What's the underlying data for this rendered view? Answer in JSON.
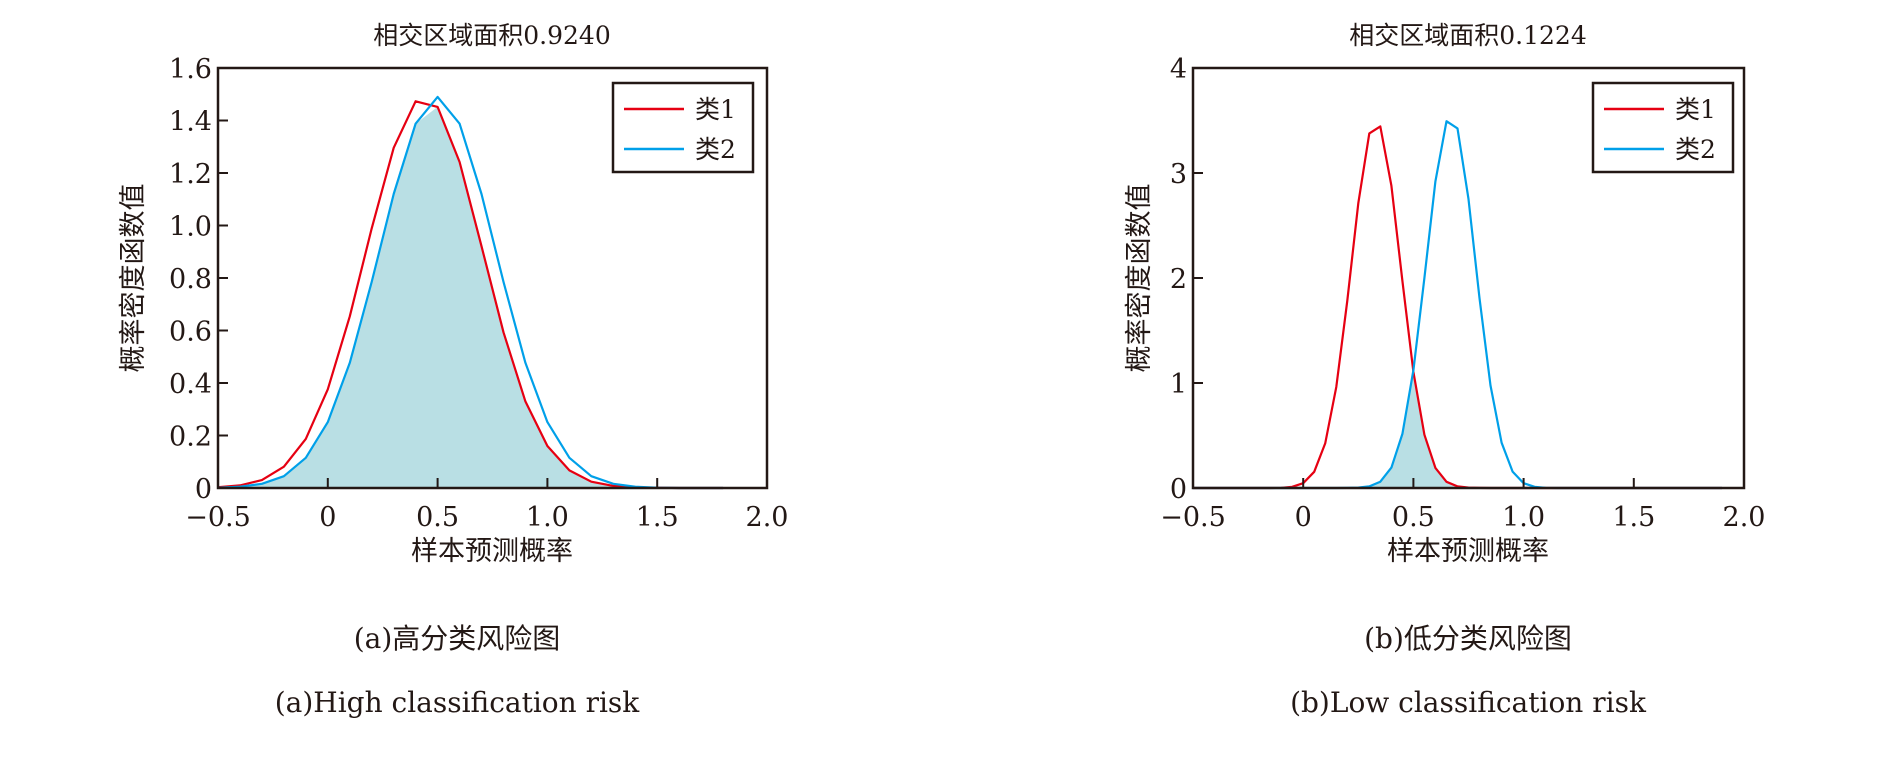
{
  "colors": {
    "class1": "#e60012",
    "class2": "#00a0e9",
    "overlap_fill": "#b9dfe4",
    "axis": "#231815"
  },
  "chart_data": [
    {
      "type": "area",
      "title": "相交区域面积0.9240",
      "xlabel": "样本预测概率",
      "ylabel": "概率密度函数值",
      "xlim": [
        -0.5,
        2.0
      ],
      "ylim": [
        0,
        1.6
      ],
      "xticks": [
        -0.5,
        0,
        0.5,
        1.0,
        1.5,
        2.0
      ],
      "xtick_labels": [
        "−0.5",
        "0",
        "0.5",
        "1.0",
        "1.5",
        "2.0"
      ],
      "yticks": [
        0,
        0.2,
        0.4,
        0.6,
        0.8,
        1.0,
        1.2,
        1.4,
        1.6
      ],
      "ytick_labels": [
        "0",
        "0.2",
        "0.4",
        "0.6",
        "0.8",
        "1.0",
        "1.2",
        "1.4",
        "1.6"
      ],
      "legend_position": "top-right",
      "overlap_area": 0.924,
      "x": [
        -0.5,
        -0.4,
        -0.3,
        -0.2,
        -0.1,
        0,
        0.1,
        0.2,
        0.3,
        0.4,
        0.5,
        0.6,
        0.7,
        0.8,
        0.9,
        1.0,
        1.1,
        1.2,
        1.3,
        1.4,
        1.5,
        1.6,
        1.7,
        1.8
      ],
      "series": [
        {
          "name": "类1",
          "color": "#e60012",
          "values": [
            0.003,
            0.01,
            0.03,
            0.081,
            0.187,
            0.376,
            0.654,
            0.989,
            1.296,
            1.473,
            1.452,
            1.242,
            0.921,
            0.593,
            0.33,
            0.16,
            0.067,
            0.024,
            0.008,
            0.002,
            0.001,
            0,
            0,
            0
          ]
        },
        {
          "name": "类2",
          "color": "#00a0e9",
          "values": [
            0.001,
            0.005,
            0.016,
            0.045,
            0.115,
            0.251,
            0.477,
            0.785,
            1.12,
            1.388,
            1.49,
            1.388,
            1.12,
            0.785,
            0.477,
            0.251,
            0.115,
            0.045,
            0.016,
            0.005,
            0.001,
            0,
            0,
            0
          ]
        }
      ],
      "caption_cn": "(a)高分类风险图",
      "caption_en": "(a)High classification risk"
    },
    {
      "type": "area",
      "title": "相交区域面积0.1224",
      "xlabel": "样本预测概率",
      "ylabel": "概率密度函数值",
      "xlim": [
        -0.5,
        2.0
      ],
      "ylim": [
        0,
        4
      ],
      "xticks": [
        -0.5,
        0,
        0.5,
        1.0,
        1.5,
        2.0
      ],
      "xtick_labels": [
        "−0.5",
        "0",
        "0.5",
        "1.0",
        "1.5",
        "2.0"
      ],
      "yticks": [
        0,
        1,
        2,
        3,
        4
      ],
      "ytick_labels": [
        "0",
        "1",
        "2",
        "3",
        "4"
      ],
      "legend_position": "top-right",
      "overlap_area": 0.1224,
      "x": [
        -0.5,
        -0.45,
        -0.4,
        -0.35,
        -0.3,
        -0.25,
        -0.2,
        -0.15,
        -0.1,
        -0.05,
        0,
        0.05,
        0.1,
        0.15,
        0.2,
        0.25,
        0.3,
        0.35,
        0.4,
        0.45,
        0.5,
        0.55,
        0.6,
        0.65,
        0.7,
        0.75,
        0.8,
        0.85,
        0.9,
        0.95,
        1.0,
        1.05,
        1.1,
        1.15,
        1.2,
        1.25,
        1.3,
        1.35,
        1.4,
        1.45,
        1.5,
        1.55,
        1.6,
        1.65,
        1.7,
        1.75,
        1.8,
        1.85,
        1.9
      ],
      "series": [
        {
          "name": "类1",
          "color": "#e60012",
          "values": [
            0,
            0,
            0,
            0,
            0,
            0,
            0,
            0,
            0.002,
            0.011,
            0.046,
            0.154,
            0.425,
            0.963,
            1.784,
            2.712,
            3.377,
            3.444,
            2.879,
            1.972,
            1.106,
            0.508,
            0.191,
            0.059,
            0.015,
            0.004,
            0.001,
            0,
            0,
            0,
            0,
            0,
            0,
            0,
            0,
            0,
            0,
            0,
            0,
            0,
            0,
            0,
            0,
            0,
            0,
            0,
            0,
            0,
            0
          ]
        },
        {
          "name": "类2",
          "color": "#00a0e9",
          "values": [
            0,
            0,
            0,
            0,
            0,
            0,
            0,
            0,
            0,
            0,
            0,
            0,
            0,
            0,
            0.001,
            0.004,
            0.015,
            0.06,
            0.194,
            0.515,
            1.122,
            2.0,
            2.92,
            3.493,
            3.425,
            2.751,
            1.809,
            0.976,
            0.431,
            0.156,
            0.046,
            0.011,
            0.002,
            0,
            0,
            0,
            0,
            0,
            0,
            0,
            0,
            0,
            0,
            0,
            0,
            0,
            0,
            0,
            0
          ]
        }
      ],
      "caption_cn": "(b)低分类风险图",
      "caption_en": "(b)Low classification risk"
    }
  ]
}
